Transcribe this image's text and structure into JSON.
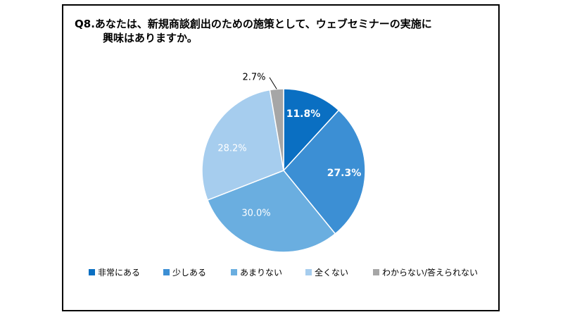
{
  "chart_data": {
    "type": "pie",
    "title_line1": "Q8.あなたは、新規商談創出のための施策として、ウェブセミナーの実施に",
    "title_line2": "興味はありますか。",
    "categories": [
      "非常にある",
      "少しある",
      "あまりない",
      "全くない",
      "わからない/答えられない"
    ],
    "values": [
      11.8,
      27.3,
      30.0,
      28.2,
      2.7
    ],
    "labels": [
      "11.8%",
      "27.3%",
      "30.0%",
      "28.2%",
      "2.7%"
    ],
    "colors": [
      "#0a6fc2",
      "#3c8fd4",
      "#6aaee0",
      "#a6cdee",
      "#a6a6a6"
    ],
    "label_colors": [
      "#ffffff",
      "#ffffff",
      "#ffffff",
      "#ffffff",
      "#000000"
    ],
    "label_bold": [
      true,
      true,
      false,
      false,
      false
    ],
    "start_angle_deg": 0,
    "direction": "clockwise",
    "legend_position": "bottom"
  }
}
